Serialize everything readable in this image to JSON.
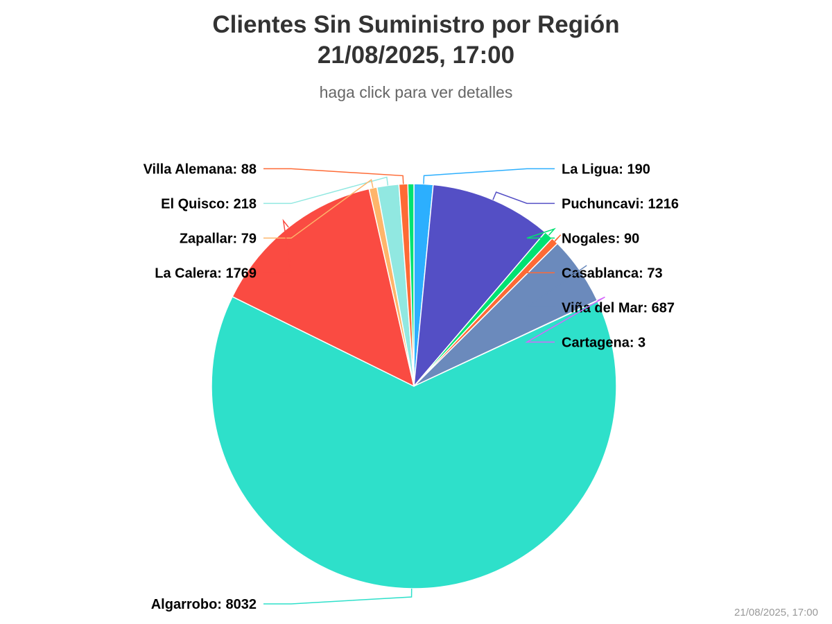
{
  "chart_data": {
    "type": "pie",
    "title": "Clientes Sin Suministro por Región",
    "title_line2": "21/08/2025, 17:00",
    "subtitle": "haga click para ver detalles",
    "credit": "21/08/2025, 17:00",
    "series": [
      {
        "name": "Clientes Sin Suministro",
        "data": [
          {
            "name": "La Ligua",
            "value": 190,
            "color": "#2caffe"
          },
          {
            "name": "Puchuncavi",
            "value": 1216,
            "color": "#544fc5"
          },
          {
            "name": "Nogales",
            "value": 90,
            "color": "#00e272"
          },
          {
            "name": "Casablanca",
            "value": 73,
            "color": "#fe6a35"
          },
          {
            "name": "Viña del Mar",
            "value": 687,
            "color": "#6b8abc"
          },
          {
            "name": "Cartagena",
            "value": 3,
            "color": "#d568fb"
          },
          {
            "name": "Algarrobo",
            "value": 8032,
            "color": "#2ee0ca"
          },
          {
            "name": "La Calera",
            "value": 1769,
            "color": "#fa4b42"
          },
          {
            "name": "Zapallar",
            "value": 79,
            "color": "#feb56a"
          },
          {
            "name": "El Quisco",
            "value": 218,
            "color": "#91e8e1"
          },
          {
            "name": "Villa Alemana",
            "value": 88,
            "color": "#fe6a35"
          }
        ]
      }
    ],
    "extra_slices": [
      {
        "value": 60,
        "color": "#00e272"
      }
    ],
    "start_angle_deg": 0,
    "direction": "clockwise",
    "legend": "none"
  }
}
